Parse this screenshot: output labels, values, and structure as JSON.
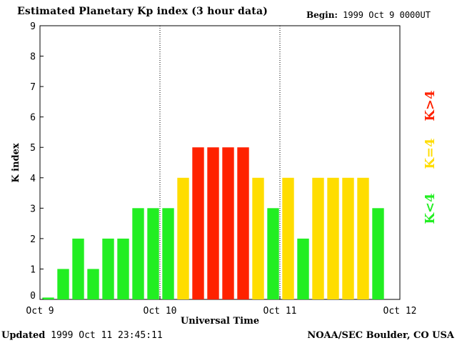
{
  "header": {
    "title": "Estimated Planetary Kp index (3 hour data)",
    "begin_label": "Begin:",
    "begin_value": "1999 Oct 9 0000UT"
  },
  "footer": {
    "updated_label": "Updated",
    "updated_value": "1999 Oct 11 23:45:11",
    "credit": "NOAA/SEC Boulder, CO USA"
  },
  "colors": {
    "green": "#22ee22",
    "yellow": "#ffdd00",
    "red": "#ff2200"
  },
  "chart_data": {
    "type": "bar",
    "title": "Estimated Planetary Kp index (3 hour data)",
    "xlabel": "Universal Time",
    "ylabel": "K index",
    "ylim": [
      0,
      9
    ],
    "yticks": [
      "0",
      "1",
      "2",
      "3",
      "4",
      "5",
      "6",
      "7",
      "8",
      "9"
    ],
    "xticks": [
      "Oct 9",
      "Oct 10",
      "Oct 11",
      "Oct 12"
    ],
    "day_dividers": "dotted",
    "bars_per_day": 8,
    "values": [
      0,
      1,
      2,
      1,
      2,
      2,
      3,
      3,
      3,
      4,
      5,
      5,
      5,
      5,
      4,
      3,
      4,
      2,
      4,
      4,
      4,
      4,
      3
    ],
    "legend": [
      {
        "label": "K<4",
        "color": "#22ee22"
      },
      {
        "label": "K=4",
        "color": "#ffdd00"
      },
      {
        "label": "K>4",
        "color": "#ff2200"
      }
    ],
    "legend_placement": "right"
  }
}
